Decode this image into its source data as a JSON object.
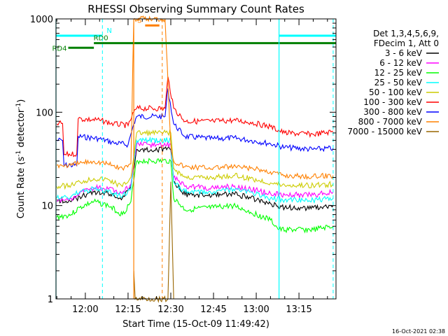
{
  "chart_data": {
    "type": "line",
    "title": "RHESSI Observing Summary Count Rates",
    "xlabel": "Start Time (15-Oct-09 11:49:42)",
    "ylabel_parts": [
      "Count Rate (s",
      "-1",
      " detector",
      "-1",
      ")"
    ],
    "yscale": "log",
    "ylim": [
      1,
      1000
    ],
    "xlim": [
      "11:49:42",
      "13:28:00"
    ],
    "x_ticks": [
      "12:00",
      "12:15",
      "12:30",
      "12:45",
      "13:00",
      "13:15"
    ],
    "y_ticks": [
      "1",
      "10",
      "100",
      "1000"
    ],
    "grid": false,
    "legend_position": "right",
    "legend_header": [
      "Det 1,3,4,5,6,9,",
      "FDecim 1, Att 0"
    ],
    "timestamp": "16-Oct-2021 02:38",
    "series": [
      {
        "name": "3 - 6 keV",
        "color": "#000000",
        "points": [
          [
            "11:50",
            11.5
          ],
          [
            "11:55",
            11
          ],
          [
            "11:58",
            12.5
          ],
          [
            "12:03",
            14
          ],
          [
            "12:08",
            13.5
          ],
          [
            "12:13",
            12
          ],
          [
            "12:16",
            16
          ],
          [
            "12:18",
            40
          ],
          [
            "12:30",
            40
          ],
          [
            "12:31",
            18
          ],
          [
            "12:35",
            13
          ],
          [
            "12:45",
            13
          ],
          [
            "12:52",
            13.5
          ],
          [
            "12:58",
            12
          ],
          [
            "13:05",
            10.5
          ],
          [
            "13:10",
            9.5
          ],
          [
            "13:20",
            9.5
          ],
          [
            "13:27",
            10
          ]
        ]
      },
      {
        "name": "6 - 12 keV",
        "color": "#ff00ff",
        "points": [
          [
            "11:50",
            11
          ],
          [
            "11:55",
            12
          ],
          [
            "11:58",
            13.5
          ],
          [
            "12:03",
            15.5
          ],
          [
            "12:08",
            15
          ],
          [
            "12:13",
            13.5
          ],
          [
            "12:16",
            17
          ],
          [
            "12:18",
            45
          ],
          [
            "12:30",
            45
          ],
          [
            "12:31",
            20
          ],
          [
            "12:35",
            16
          ],
          [
            "12:45",
            15.5
          ],
          [
            "12:52",
            16
          ],
          [
            "12:58",
            15
          ],
          [
            "13:05",
            13.5
          ],
          [
            "13:10",
            13
          ],
          [
            "13:20",
            13
          ],
          [
            "13:27",
            14
          ]
        ]
      },
      {
        "name": "12 - 25 keV",
        "color": "#00ff00",
        "points": [
          [
            "11:50",
            7.5
          ],
          [
            "11:55",
            8
          ],
          [
            "11:58",
            9.5
          ],
          [
            "12:03",
            11
          ],
          [
            "12:08",
            10
          ],
          [
            "12:13",
            8
          ],
          [
            "12:16",
            11
          ],
          [
            "12:18",
            30
          ],
          [
            "12:30",
            30
          ],
          [
            "12:31",
            12
          ],
          [
            "12:35",
            9
          ],
          [
            "12:45",
            9.5
          ],
          [
            "12:52",
            10
          ],
          [
            "12:58",
            8.5
          ],
          [
            "13:05",
            7
          ],
          [
            "13:08",
            5.5
          ],
          [
            "13:20",
            5.5
          ],
          [
            "13:27",
            6
          ]
        ]
      },
      {
        "name": "25 - 50 keV",
        "color": "#00ffff",
        "points": [
          [
            "11:50",
            12
          ],
          [
            "11:55",
            12.5
          ],
          [
            "11:58",
            14
          ],
          [
            "12:03",
            15
          ],
          [
            "12:08",
            14
          ],
          [
            "12:13",
            12.5
          ],
          [
            "12:16",
            15
          ],
          [
            "12:18",
            50
          ],
          [
            "12:30",
            50
          ],
          [
            "12:31",
            18
          ],
          [
            "12:35",
            14
          ],
          [
            "12:45",
            14
          ],
          [
            "12:52",
            15
          ],
          [
            "12:58",
            14
          ],
          [
            "13:05",
            12
          ],
          [
            "13:10",
            11.5
          ],
          [
            "13:20",
            11.5
          ],
          [
            "13:27",
            12
          ]
        ]
      },
      {
        "name": "50 - 100 keV",
        "color": "#cccc00",
        "points": [
          [
            "11:50",
            16
          ],
          [
            "11:55",
            16.5
          ],
          [
            "11:58",
            18
          ],
          [
            "12:03",
            19.5
          ],
          [
            "12:08",
            19
          ],
          [
            "12:13",
            16
          ],
          [
            "12:16",
            20
          ],
          [
            "12:18",
            60
          ],
          [
            "12:30",
            60
          ],
          [
            "12:31",
            25
          ],
          [
            "12:35",
            20
          ],
          [
            "12:45",
            20
          ],
          [
            "12:52",
            21
          ],
          [
            "12:58",
            19.5
          ],
          [
            "13:05",
            17.5
          ],
          [
            "13:10",
            16.5
          ],
          [
            "13:20",
            16.5
          ],
          [
            "13:27",
            17
          ]
        ]
      },
      {
        "name": "100 - 300 keV",
        "color": "#ff0000",
        "points": [
          [
            "11:50",
            75
          ],
          [
            "11:52",
            76
          ],
          [
            "11:52.5",
            35
          ],
          [
            "11:57",
            36
          ],
          [
            "11:57.5",
            85
          ],
          [
            "12:05",
            82
          ],
          [
            "12:10",
            75
          ],
          [
            "12:15",
            72
          ],
          [
            "12:17",
            100
          ],
          [
            "12:18",
            110
          ],
          [
            "12:28",
            110
          ],
          [
            "12:29",
            240
          ],
          [
            "12:31",
            110
          ],
          [
            "12:35",
            80
          ],
          [
            "12:45",
            80
          ],
          [
            "12:52",
            82
          ],
          [
            "12:58",
            78
          ],
          [
            "13:05",
            70
          ],
          [
            "13:10",
            60
          ],
          [
            "13:20",
            58
          ],
          [
            "13:27",
            62
          ]
        ]
      },
      {
        "name": "300 - 800 keV",
        "color": "#0000ff",
        "points": [
          [
            "11:50",
            50
          ],
          [
            "11:52",
            50
          ],
          [
            "11:52.5",
            27
          ],
          [
            "11:57",
            27
          ],
          [
            "11:57.5",
            55
          ],
          [
            "12:05",
            52
          ],
          [
            "12:10",
            47
          ],
          [
            "12:15",
            45
          ],
          [
            "12:17",
            75
          ],
          [
            "12:18",
            90
          ],
          [
            "12:28",
            90
          ],
          [
            "12:29",
            180
          ],
          [
            "12:31",
            75
          ],
          [
            "12:35",
            55
          ],
          [
            "12:45",
            52
          ],
          [
            "12:52",
            53
          ],
          [
            "12:58",
            50
          ],
          [
            "13:05",
            46
          ],
          [
            "13:10",
            42
          ],
          [
            "13:20",
            40
          ],
          [
            "13:27",
            41
          ]
        ]
      },
      {
        "name": "800 - 7000 keV",
        "color": "#ff8000",
        "points": [
          [
            "11:50",
            27
          ],
          [
            "11:55",
            27
          ],
          [
            "11:58",
            28.5
          ],
          [
            "12:03",
            30
          ],
          [
            "12:08",
            28
          ],
          [
            "12:13",
            25
          ],
          [
            "12:16",
            28
          ],
          [
            "12:17",
            1000
          ],
          [
            "12:24",
            1000
          ],
          [
            "12:28",
            1000
          ],
          [
            "12:30",
            45
          ],
          [
            "12:31",
            30
          ],
          [
            "12:35",
            26
          ],
          [
            "12:45",
            25.5
          ],
          [
            "12:52",
            26
          ],
          [
            "12:58",
            25
          ],
          [
            "13:05",
            23
          ],
          [
            "13:10",
            21
          ],
          [
            "13:20",
            20.5
          ],
          [
            "13:27",
            21
          ]
        ]
      },
      {
        "name": "7000 - 15000 keV",
        "color": "#996600",
        "points": [
          [
            "12:17",
            2
          ],
          [
            "12:17.5",
            1
          ],
          [
            "12:29",
            1
          ],
          [
            "12:30",
            18
          ],
          [
            "12:31",
            1
          ]
        ]
      }
    ],
    "overlays": [
      {
        "type": "state_bar",
        "label": "N",
        "color": "#00ffff",
        "start": "11:49:42",
        "end": "12:06",
        "level": 660
      },
      {
        "type": "state_bar",
        "label": "",
        "color": "#00ffff",
        "start": "13:08",
        "end": "13:28",
        "level": 660
      },
      {
        "type": "state_bar",
        "label": "S",
        "color": "#ff8000",
        "start": "12:21",
        "end": "12:26",
        "level": 850
      },
      {
        "type": "state_bar",
        "label": "RD0",
        "color": "#008000",
        "start": "12:03",
        "end": "13:28",
        "level": 550
      },
      {
        "type": "state_bar",
        "label": "RD4",
        "color": "#008000",
        "start": "11:54",
        "end": "12:03",
        "level": 490
      },
      {
        "type": "vline",
        "color": "#00ffff",
        "style": "solid",
        "at": "11:49:42"
      },
      {
        "type": "vline",
        "color": "#00ffff",
        "style": "dashed",
        "at": "12:06"
      },
      {
        "type": "vline",
        "color": "#00ffff",
        "style": "solid",
        "at": "13:08"
      },
      {
        "type": "vline",
        "color": "#00ffff",
        "style": "dashed",
        "at": "13:27"
      },
      {
        "type": "vline",
        "color": "#ff8000",
        "style": "solid",
        "at": "12:17"
      },
      {
        "type": "vline",
        "color": "#ff8000",
        "style": "dashed",
        "at": "12:27"
      }
    ]
  }
}
